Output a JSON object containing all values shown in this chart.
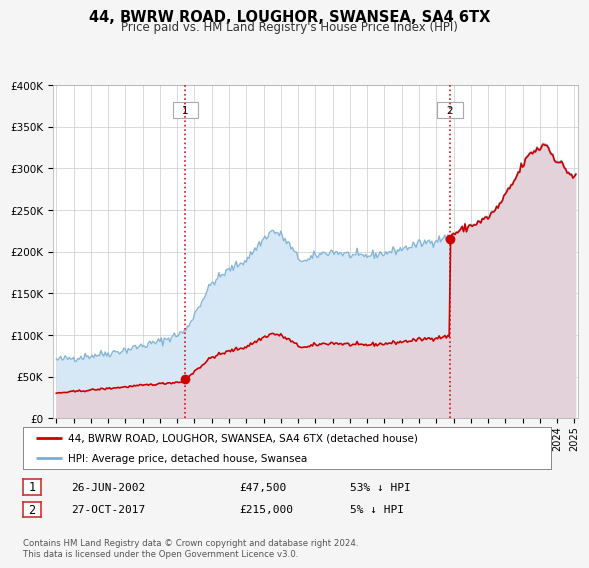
{
  "title": "44, BWRW ROAD, LOUGHOR, SWANSEA, SA4 6TX",
  "subtitle": "Price paid vs. HM Land Registry's House Price Index (HPI)",
  "legend_line1": "44, BWRW ROAD, LOUGHOR, SWANSEA, SA4 6TX (detached house)",
  "legend_line2": "HPI: Average price, detached house, Swansea",
  "transaction1_date": "26-JUN-2002",
  "transaction1_price": "£47,500",
  "transaction1_hpi": "53% ↓ HPI",
  "transaction2_date": "27-OCT-2017",
  "transaction2_price": "£215,000",
  "transaction2_hpi": "5% ↓ HPI",
  "footer": "Contains HM Land Registry data © Crown copyright and database right 2024.\nThis data is licensed under the Open Government Licence v3.0.",
  "sale_color": "#cc0000",
  "hpi_color": "#7aafd4",
  "hpi_fill_color": "#d6e8f5",
  "sale_fill_color": "#f5cccc",
  "background_color": "#f5f5f5",
  "plot_bg_color": "#ffffff",
  "grid_color": "#cccccc",
  "ytick_labels": [
    "£0",
    "£50K",
    "£100K",
    "£150K",
    "£200K",
    "£250K",
    "£300K",
    "£350K",
    "£400K"
  ],
  "yticks": [
    0,
    50000,
    100000,
    150000,
    200000,
    250000,
    300000,
    350000,
    400000
  ],
  "sale1_x": 2002.48,
  "sale1_y": 47500,
  "sale2_x": 2017.82,
  "sale2_y": 215000,
  "vline1_x": 2002.48,
  "vline2_x": 2017.82,
  "xmin": 1994.8,
  "xmax": 2025.2
}
